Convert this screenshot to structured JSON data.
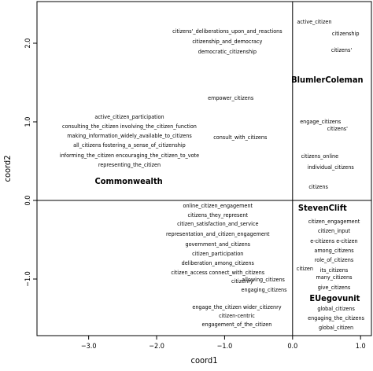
{
  "chart_data": {
    "type": "scatter",
    "title": "",
    "xlabel": "coord1",
    "ylabel": "coord2",
    "xlim": [
      -3.76,
      1.16
    ],
    "ylim": [
      -1.72,
      2.53
    ],
    "xticks": [
      {
        "value": -3.0,
        "label": "−3.0"
      },
      {
        "value": -2.0,
        "label": "−2.0"
      },
      {
        "value": -1.0,
        "label": "−1.0"
      },
      {
        "value": 0.0,
        "label": "0.0"
      },
      {
        "value": 1.0,
        "label": "1.0"
      }
    ],
    "yticks": [
      {
        "value": -1.0,
        "label": "−1.0"
      },
      {
        "value": 0.0,
        "label": "0.0"
      },
      {
        "value": 1.0,
        "label": "1.0"
      },
      {
        "value": 2.0,
        "label": "2.0"
      }
    ],
    "reference_lines": {
      "x": 0.0,
      "y": 0.0
    },
    "grid": false,
    "points": [
      {
        "label": "active_citizen",
        "x": 0.32,
        "y": 2.27,
        "emphasis": false
      },
      {
        "label": "citizens'_deliberations_upon_and_reactions",
        "x": -0.96,
        "y": 2.15,
        "emphasis": false
      },
      {
        "label": "citizenship",
        "x": 0.78,
        "y": 2.12,
        "emphasis": false
      },
      {
        "label": "citizenship_and_democracy",
        "x": -0.96,
        "y": 2.02,
        "emphasis": false
      },
      {
        "label": "democratic_citizenship",
        "x": -0.96,
        "y": 1.89,
        "emphasis": false
      },
      {
        "label": "citizens'",
        "x": 0.72,
        "y": 1.91,
        "emphasis": false
      },
      {
        "label": "BlumlerColeman",
        "x": 0.51,
        "y": 1.53,
        "emphasis": true
      },
      {
        "label": "empower_citizens",
        "x": -0.91,
        "y": 1.3,
        "emphasis": false
      },
      {
        "label": "active_citizen_participation",
        "x": -2.4,
        "y": 1.06,
        "emphasis": false
      },
      {
        "label": "engage_citizens",
        "x": 0.41,
        "y": 1.0,
        "emphasis": false
      },
      {
        "label": "citizens'",
        "x": 0.66,
        "y": 0.91,
        "emphasis": false
      },
      {
        "label": "consulting_the_citizen involving_the_citizen_function",
        "x": -2.4,
        "y": 0.94,
        "emphasis": false
      },
      {
        "label": "making_information_widely_available_to_citizens",
        "x": -2.4,
        "y": 0.82,
        "emphasis": false
      },
      {
        "label": "consult_with_citizens",
        "x": -0.77,
        "y": 0.8,
        "emphasis": false
      },
      {
        "label": "all_citizens fostering_a_sense_of_citizenship",
        "x": -2.4,
        "y": 0.7,
        "emphasis": false
      },
      {
        "label": "informing_the_citizen encouraging_the_citizen_to_vote",
        "x": -2.4,
        "y": 0.57,
        "emphasis": false
      },
      {
        "label": "citizens_online",
        "x": 0.4,
        "y": 0.56,
        "emphasis": false
      },
      {
        "label": "representing_the_citizen",
        "x": -2.4,
        "y": 0.45,
        "emphasis": false
      },
      {
        "label": "individual_citizens",
        "x": 0.56,
        "y": 0.42,
        "emphasis": false
      },
      {
        "label": "Commonwealth",
        "x": -2.41,
        "y": 0.24,
        "emphasis": true
      },
      {
        "label": "citizens",
        "x": 0.38,
        "y": 0.17,
        "emphasis": false
      },
      {
        "label": "online_citizen_engagement",
        "x": -1.1,
        "y": -0.07,
        "emphasis": false
      },
      {
        "label": "StevenClift",
        "x": 0.44,
        "y": -0.1,
        "emphasis": true
      },
      {
        "label": "citizens_they_represent",
        "x": -1.1,
        "y": -0.19,
        "emphasis": false
      },
      {
        "label": "citizen_engagement",
        "x": 0.61,
        "y": -0.27,
        "emphasis": false
      },
      {
        "label": "citizen_satisfaction_and_service",
        "x": -1.1,
        "y": -0.3,
        "emphasis": false
      },
      {
        "label": "citizen_input",
        "x": 0.61,
        "y": -0.39,
        "emphasis": false
      },
      {
        "label": "representation_and_citizen_engagement",
        "x": -1.1,
        "y": -0.43,
        "emphasis": false
      },
      {
        "label": "e-citizens e-citizen",
        "x": 0.61,
        "y": -0.52,
        "emphasis": false
      },
      {
        "label": "government_and_citizens",
        "x": -1.1,
        "y": -0.56,
        "emphasis": false
      },
      {
        "label": "among_citizens",
        "x": 0.61,
        "y": -0.64,
        "emphasis": false
      },
      {
        "label": "citizen_participation",
        "x": -1.1,
        "y": -0.68,
        "emphasis": false
      },
      {
        "label": "role_of_citizens",
        "x": 0.61,
        "y": -0.76,
        "emphasis": false
      },
      {
        "label": "deliberation_among_citizens",
        "x": -1.1,
        "y": -0.8,
        "emphasis": false
      },
      {
        "label": "citizen",
        "x": 0.18,
        "y": -0.87,
        "emphasis": false
      },
      {
        "label": "its_citizens",
        "x": 0.61,
        "y": -0.89,
        "emphasis": false
      },
      {
        "label": "citizen_access connect_with_citizens",
        "x": -1.1,
        "y": -0.92,
        "emphasis": false
      },
      {
        "label": "allowing_citizens",
        "x": -0.43,
        "y": -1.01,
        "emphasis": false
      },
      {
        "label": "many_citizens",
        "x": 0.61,
        "y": -0.98,
        "emphasis": false
      },
      {
        "label": "citizenry",
        "x": -0.74,
        "y": -1.03,
        "emphasis": false
      },
      {
        "label": "give_citizens",
        "x": 0.61,
        "y": -1.11,
        "emphasis": false
      },
      {
        "label": "engaging_citizens",
        "x": -0.42,
        "y": -1.14,
        "emphasis": false
      },
      {
        "label": "EUegovunit",
        "x": 0.62,
        "y": -1.25,
        "emphasis": true
      },
      {
        "label": "engage_the_citizen wider_citizenry",
        "x": -0.82,
        "y": -1.36,
        "emphasis": false
      },
      {
        "label": "global_citizens",
        "x": 0.64,
        "y": -1.38,
        "emphasis": false
      },
      {
        "label": "citizen-centric",
        "x": -0.82,
        "y": -1.47,
        "emphasis": false
      },
      {
        "label": "engaging_the_citizens",
        "x": 0.64,
        "y": -1.5,
        "emphasis": false
      },
      {
        "label": "engagement_of_the_citizen",
        "x": -0.82,
        "y": -1.58,
        "emphasis": false
      },
      {
        "label": "global_citizen",
        "x": 0.64,
        "y": -1.62,
        "emphasis": false
      }
    ]
  }
}
